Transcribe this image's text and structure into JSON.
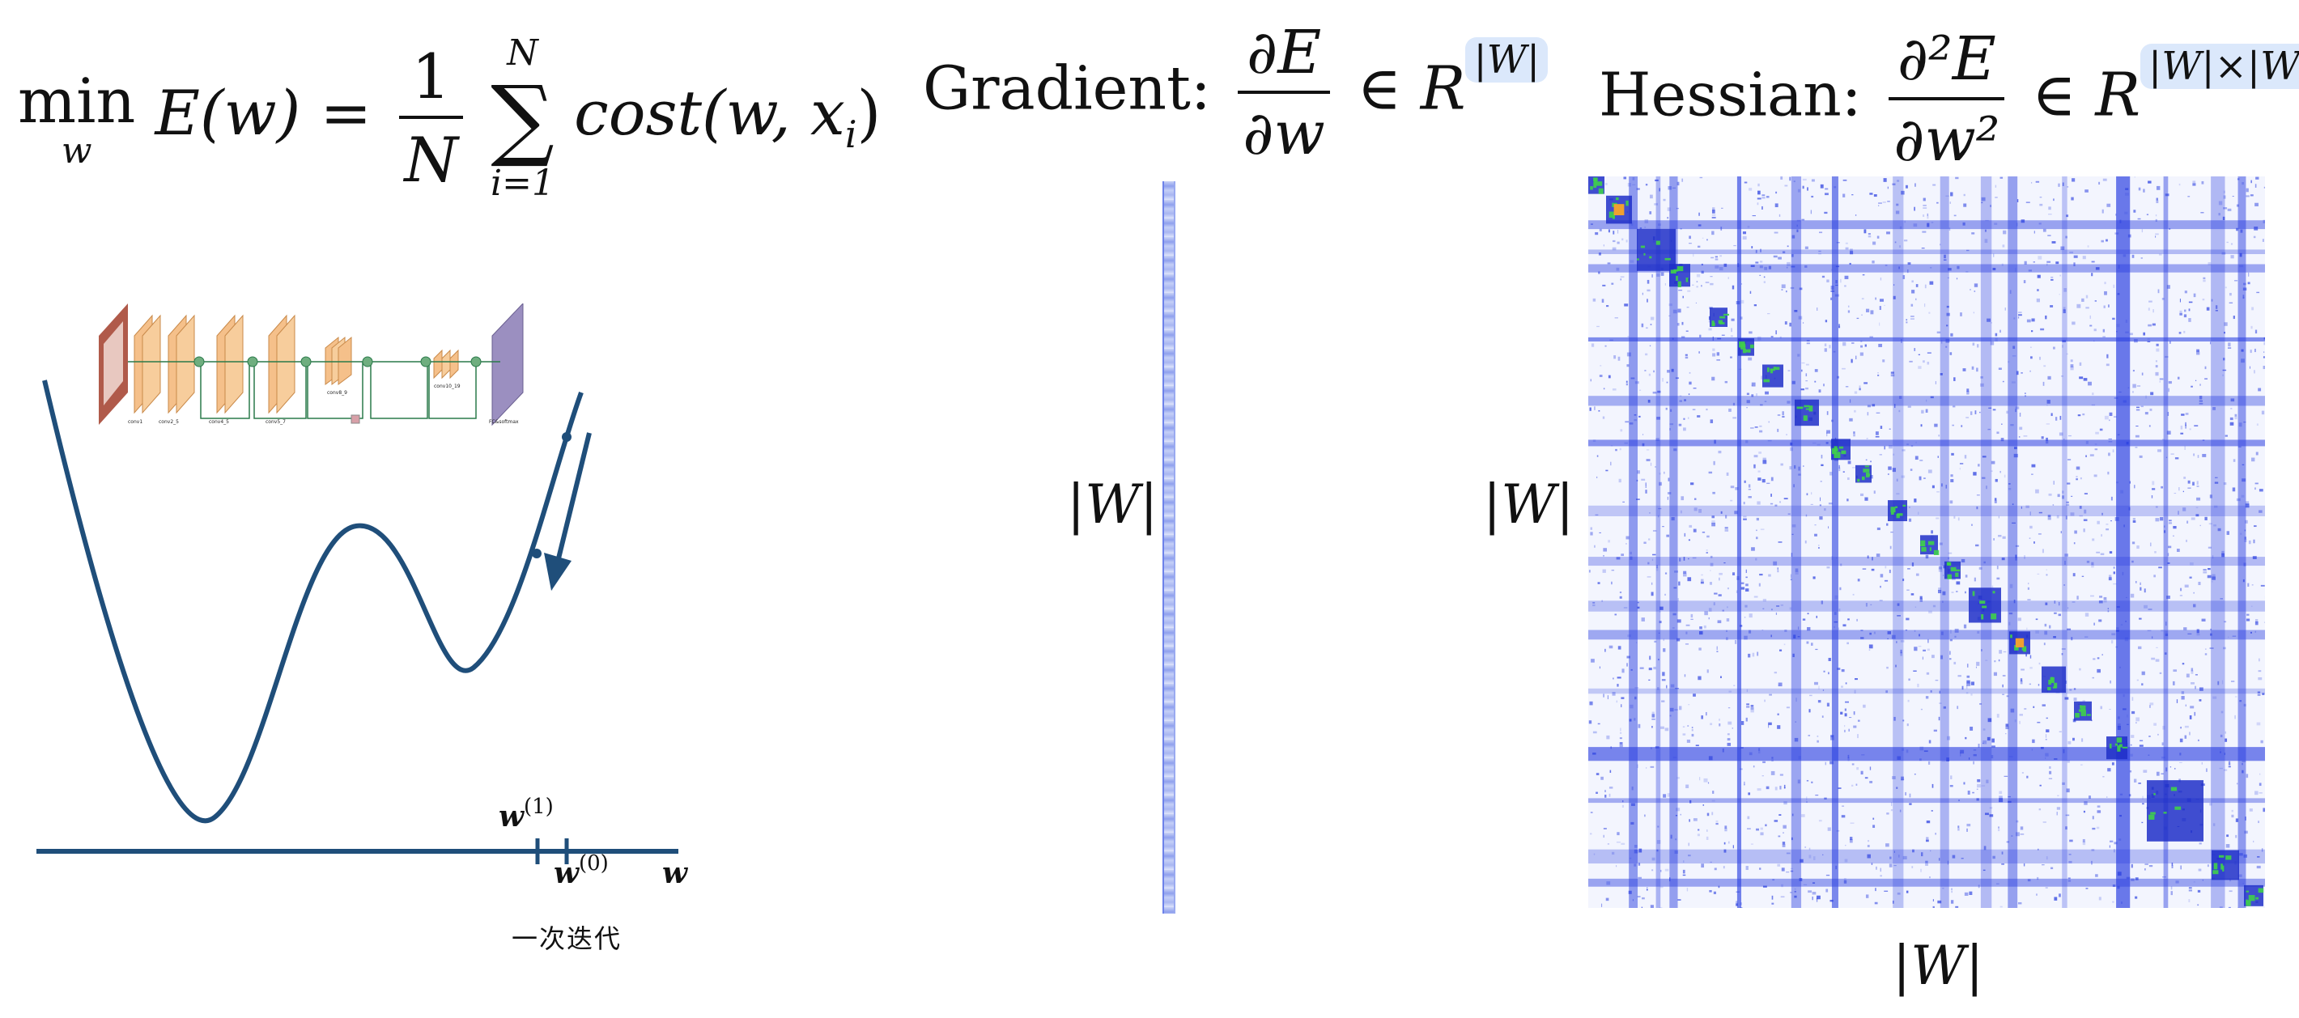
{
  "objective": {
    "min_word": "min",
    "min_sub": "w",
    "lhs": "E(w) =",
    "frac_num": "1",
    "frac_den": "N",
    "sum_top": "N",
    "sum_bottom": "i=1",
    "body": "cost(w, x",
    "body_sub": "i",
    "body_close": ")"
  },
  "gradient": {
    "label": "Gradient:",
    "num": "∂E",
    "den": "∂w",
    "in": "∈",
    "space": "R",
    "dim": "|W|"
  },
  "hessian": {
    "label": "Hessian:",
    "num": "∂²E",
    "den": "∂w²",
    "in": "∈",
    "space": "R",
    "dim": "|W|×|W|"
  },
  "labels": {
    "grad_dim": "|W|",
    "hess_row_dim": "|W|",
    "hess_col_dim": "|W|",
    "w1": "w",
    "w1_sup": "(1)",
    "w0": "w",
    "w0_sup": "(0)",
    "w_axis": "w",
    "caption": "一次迭代"
  },
  "cnn_labels": {
    "l1": "conv1",
    "l2": "conv2_5",
    "l3": "conv4_5",
    "l4": "conv5_7",
    "l5": "conv8_9",
    "l6": "conv10_19",
    "l7": "FC&softmax"
  },
  "colors": {
    "curve": "#1f4e7a",
    "matrix_blue": "#2a3fe0",
    "matrix_green": "#3fd04a",
    "matrix_orange": "#f0a030",
    "highlight": "#dbe8fb",
    "cnn_block": "#f5c08a",
    "cnn_fc": "#9b8fc0"
  }
}
